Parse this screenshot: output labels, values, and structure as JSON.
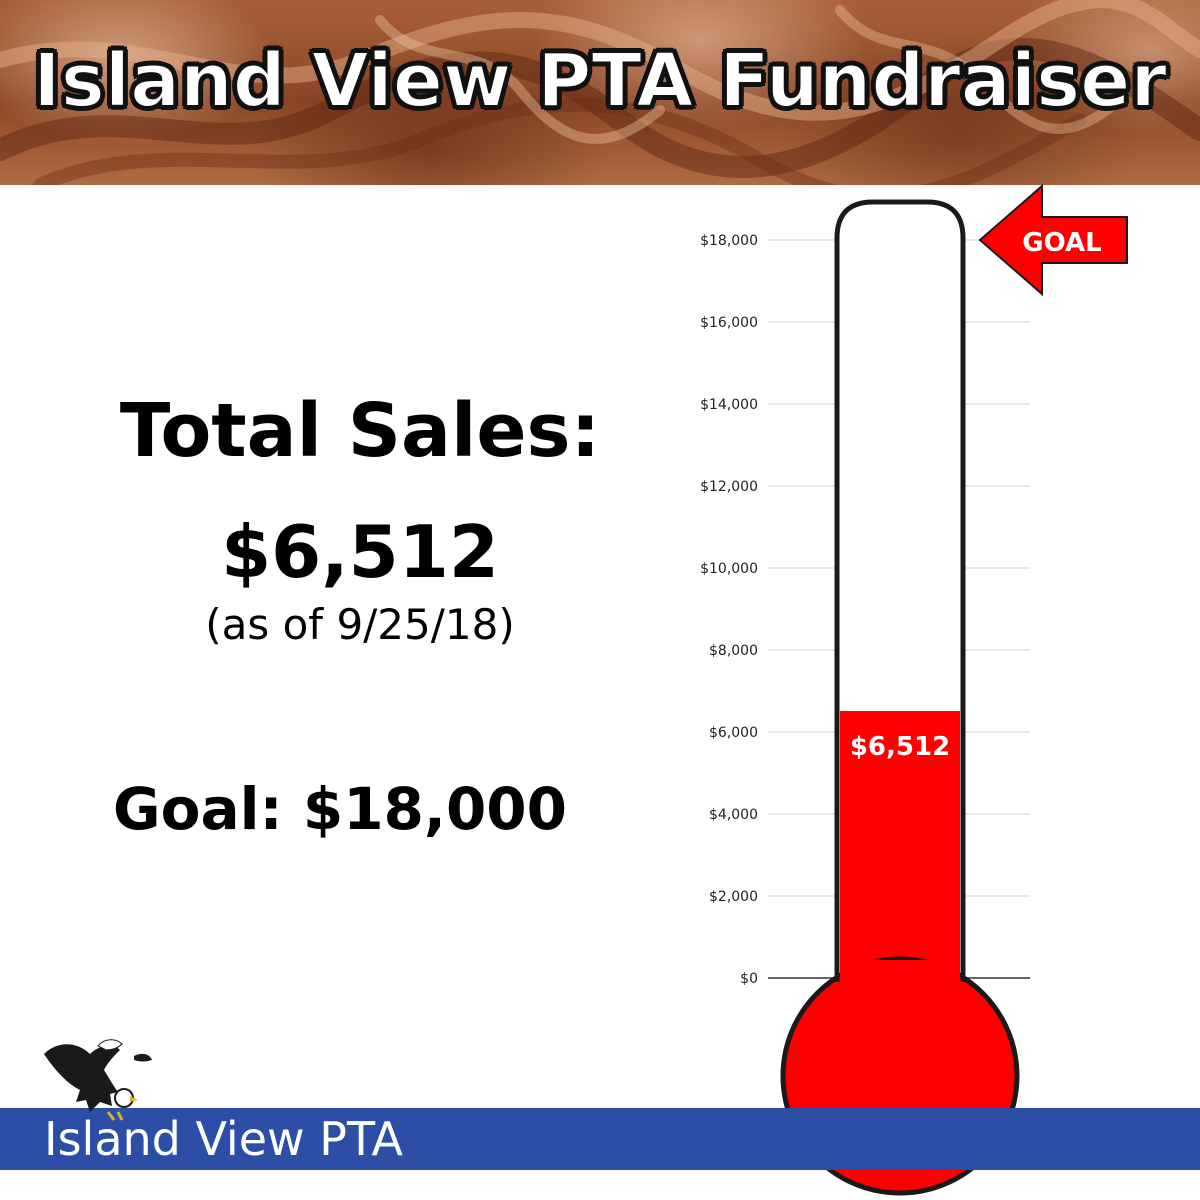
{
  "header": {
    "title": "Island View PTA Fundraiser"
  },
  "summary": {
    "sales_label": "Total Sales:",
    "sales_value": "$6,512",
    "as_of": "(as of 9/25/18)",
    "goal": "Goal: $18,000"
  },
  "goal_marker": {
    "label": "GOAL",
    "color": "#ff0000"
  },
  "footer": {
    "org_name": "Island View PTA",
    "bar_color": "#2c4ea7"
  },
  "logo": {
    "icon": "eagle-icon"
  },
  "chart_data": {
    "type": "bar",
    "title": "",
    "xlabel": "",
    "ylabel": "",
    "categories": [
      "Total Sales"
    ],
    "values": [
      6512
    ],
    "value_label": "$6,512",
    "goal": 18000,
    "ylim": [
      0,
      18000
    ],
    "ticks": [
      0,
      2000,
      4000,
      6000,
      8000,
      10000,
      12000,
      14000,
      16000,
      18000
    ],
    "tick_labels": [
      "$0",
      "$2,000",
      "$4,000",
      "$6,000",
      "$8,000",
      "$10,000",
      "$12,000",
      "$14,000",
      "$16,000",
      "$18,000"
    ],
    "grid": true,
    "fill_color": "#ff0000"
  }
}
